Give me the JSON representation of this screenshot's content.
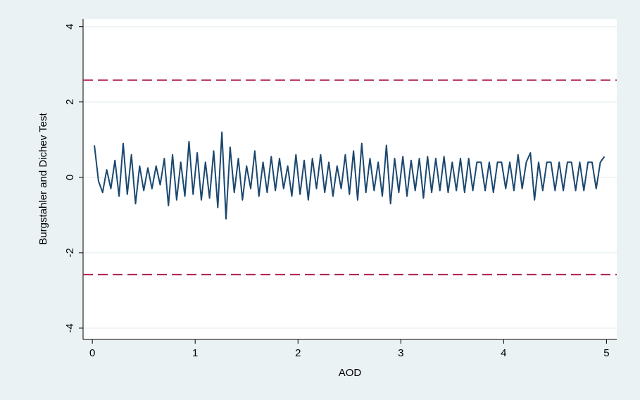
{
  "chart_data": {
    "type": "line",
    "xlabel": "AOD",
    "ylabel": "Burgstahler and Dichev Test",
    "xlim": [
      -0.09,
      5.1
    ],
    "ylim": [
      -4.3,
      4.2
    ],
    "xticks": [
      0,
      1,
      2,
      3,
      4,
      5
    ],
    "yticks": [
      -4,
      -2,
      0,
      2,
      4
    ],
    "grid": true,
    "reference_lines": {
      "values": [
        2.58,
        -2.58
      ],
      "color": "#b0204a"
    },
    "series": [
      {
        "color": "#1a476f",
        "x": [
          0.02,
          0.06,
          0.1,
          0.14,
          0.18,
          0.22,
          0.26,
          0.3,
          0.34,
          0.38,
          0.42,
          0.46,
          0.5,
          0.54,
          0.58,
          0.62,
          0.66,
          0.7,
          0.74,
          0.78,
          0.82,
          0.86,
          0.9,
          0.94,
          0.98,
          1.02,
          1.06,
          1.1,
          1.14,
          1.18,
          1.22,
          1.26,
          1.3,
          1.34,
          1.38,
          1.42,
          1.46,
          1.5,
          1.54,
          1.58,
          1.62,
          1.66,
          1.7,
          1.74,
          1.78,
          1.82,
          1.86,
          1.9,
          1.94,
          1.98,
          2.02,
          2.06,
          2.1,
          2.14,
          2.18,
          2.22,
          2.26,
          2.3,
          2.34,
          2.38,
          2.42,
          2.46,
          2.5,
          2.54,
          2.58,
          2.62,
          2.66,
          2.7,
          2.74,
          2.78,
          2.82,
          2.86,
          2.9,
          2.94,
          2.98,
          3.02,
          3.06,
          3.1,
          3.14,
          3.18,
          3.22,
          3.26,
          3.3,
          3.34,
          3.38,
          3.42,
          3.46,
          3.5,
          3.54,
          3.58,
          3.62,
          3.66,
          3.7,
          3.74,
          3.78,
          3.82,
          3.86,
          3.9,
          3.94,
          3.98,
          4.02,
          4.06,
          4.1,
          4.14,
          4.18,
          4.22,
          4.26,
          4.3,
          4.34,
          4.38,
          4.42,
          4.46,
          4.5,
          4.54,
          4.58,
          4.62,
          4.66,
          4.7,
          4.74,
          4.78,
          4.82,
          4.86,
          4.9,
          4.94,
          4.98
        ],
        "values": [
          0.85,
          -0.1,
          -0.4,
          0.2,
          -0.3,
          0.45,
          -0.5,
          0.9,
          -0.45,
          0.6,
          -0.7,
          0.3,
          -0.35,
          0.25,
          -0.3,
          0.3,
          -0.2,
          0.5,
          -0.75,
          0.6,
          -0.6,
          0.4,
          -0.5,
          0.95,
          -0.45,
          0.65,
          -0.6,
          0.4,
          -0.55,
          0.7,
          -0.8,
          1.2,
          -1.1,
          0.8,
          -0.4,
          0.5,
          -0.6,
          0.3,
          -0.3,
          0.7,
          -0.5,
          0.4,
          -0.4,
          0.55,
          -0.35,
          0.5,
          -0.3,
          0.3,
          -0.5,
          0.6,
          -0.45,
          0.45,
          -0.6,
          0.5,
          -0.3,
          0.6,
          -0.4,
          0.4,
          -0.5,
          0.3,
          -0.3,
          0.6,
          -0.45,
          0.7,
          -0.6,
          0.9,
          -0.4,
          0.5,
          -0.35,
          0.4,
          -0.5,
          0.85,
          -0.7,
          0.5,
          -0.4,
          0.55,
          -0.5,
          0.45,
          -0.35,
          0.5,
          -0.55,
          0.55,
          -0.4,
          0.5,
          -0.35,
          0.55,
          -0.4,
          0.4,
          -0.35,
          0.5,
          -0.4,
          0.5,
          -0.35,
          0.4,
          0.4,
          -0.35,
          0.4,
          -0.4,
          0.4,
          0.4,
          -0.3,
          0.4,
          -0.35,
          0.6,
          -0.3,
          0.4,
          0.65,
          -0.6,
          0.4,
          -0.35,
          0.4,
          0.4,
          -0.35,
          0.4,
          -0.35,
          0.4,
          0.4,
          -0.35,
          0.4,
          -0.35,
          0.4,
          0.4,
          -0.3,
          0.4,
          0.55
        ]
      }
    ]
  }
}
